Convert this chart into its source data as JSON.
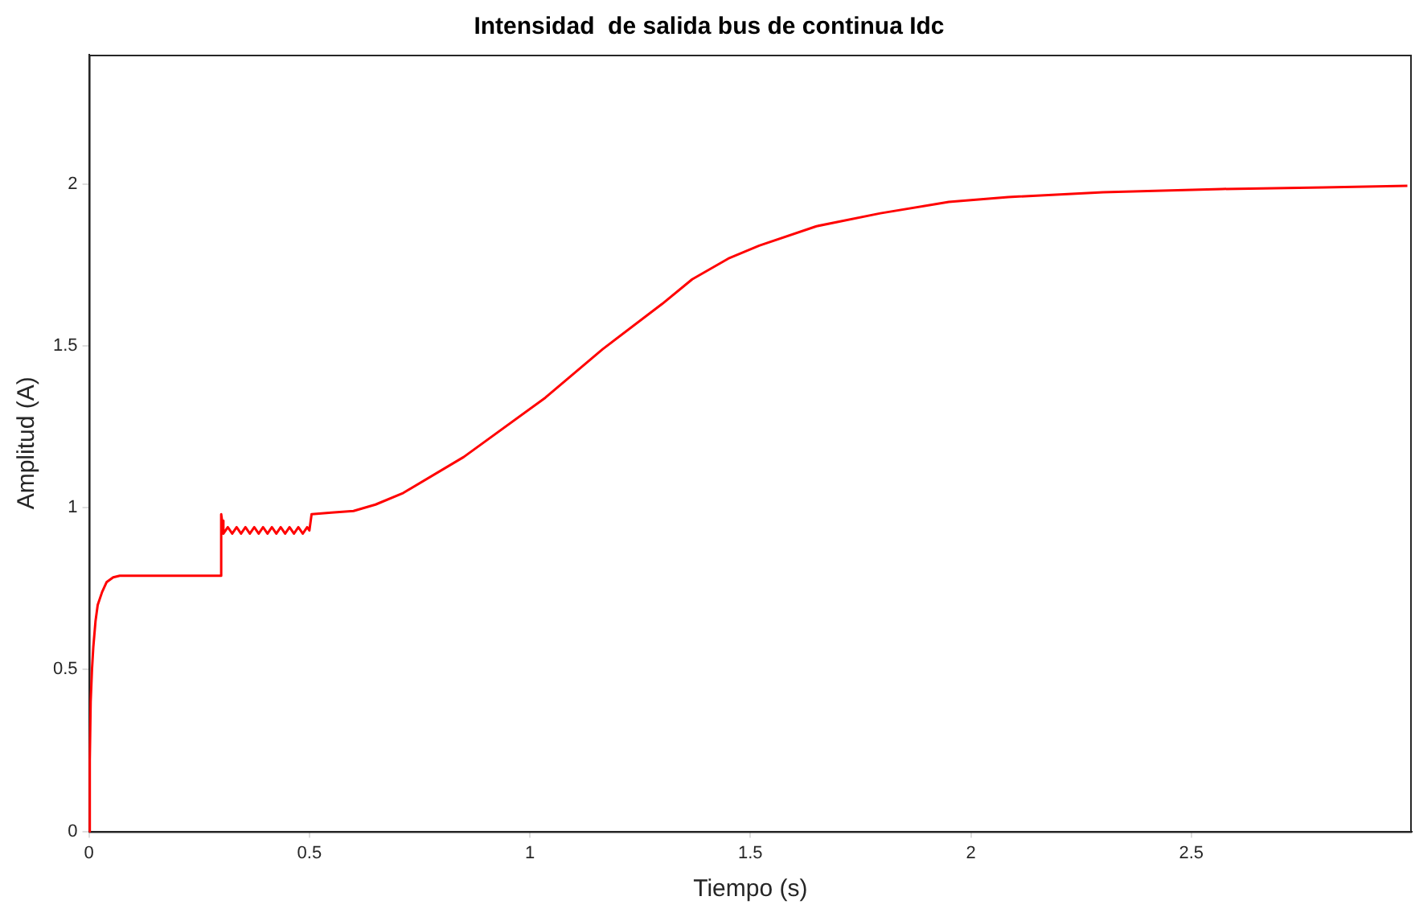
{
  "chart_data": {
    "type": "line",
    "title": "Intensidad  de salida bus de continua Idc",
    "xlabel": "Tiempo (s)",
    "ylabel": "Amplitud (A)",
    "xlim": [
      0,
      3
    ],
    "xticks": [
      0,
      0.5,
      1,
      1.5,
      2,
      2.5
    ],
    "ylim": [
      0,
      2.4
    ],
    "yticks": [
      0,
      0.5,
      1,
      1.5,
      2
    ],
    "grid": false,
    "marker": "none",
    "line_style": "solid",
    "series": [
      {
        "color": "#ff0000",
        "x": [
          0,
          0.002,
          0.004,
          0.007,
          0.01,
          0.015,
          0.02,
          0.03,
          0.04,
          0.055,
          0.07,
          0.1,
          0.15,
          0.2,
          0.25,
          0.299,
          0.3,
          0.302,
          0.305,
          0.315,
          0.325,
          0.335,
          0.345,
          0.355,
          0.365,
          0.375,
          0.385,
          0.395,
          0.405,
          0.415,
          0.425,
          0.435,
          0.445,
          0.455,
          0.465,
          0.475,
          0.485,
          0.495,
          0.5,
          0.505,
          0.55,
          0.6,
          0.65,
          0.713,
          0.85,
          1.035,
          1.165,
          1.3,
          1.368,
          1.45,
          1.52,
          1.65,
          1.795,
          1.95,
          2.085,
          2.3,
          2.57,
          2.8,
          2.99
        ],
        "values": [
          0,
          0.22,
          0.4,
          0.5,
          0.57,
          0.65,
          0.7,
          0.74,
          0.77,
          0.785,
          0.79,
          0.79,
          0.79,
          0.79,
          0.79,
          0.79,
          0.98,
          0.96,
          0.92,
          0.94,
          0.92,
          0.94,
          0.92,
          0.94,
          0.92,
          0.94,
          0.92,
          0.94,
          0.92,
          0.94,
          0.92,
          0.94,
          0.92,
          0.94,
          0.92,
          0.94,
          0.92,
          0.94,
          0.93,
          0.98,
          0.985,
          0.99,
          1.01,
          1.046,
          1.157,
          1.34,
          1.49,
          1.63,
          1.706,
          1.77,
          1.81,
          1.87,
          1.91,
          1.945,
          1.96,
          1.975,
          1.985,
          1.99,
          1.995
        ]
      }
    ]
  }
}
